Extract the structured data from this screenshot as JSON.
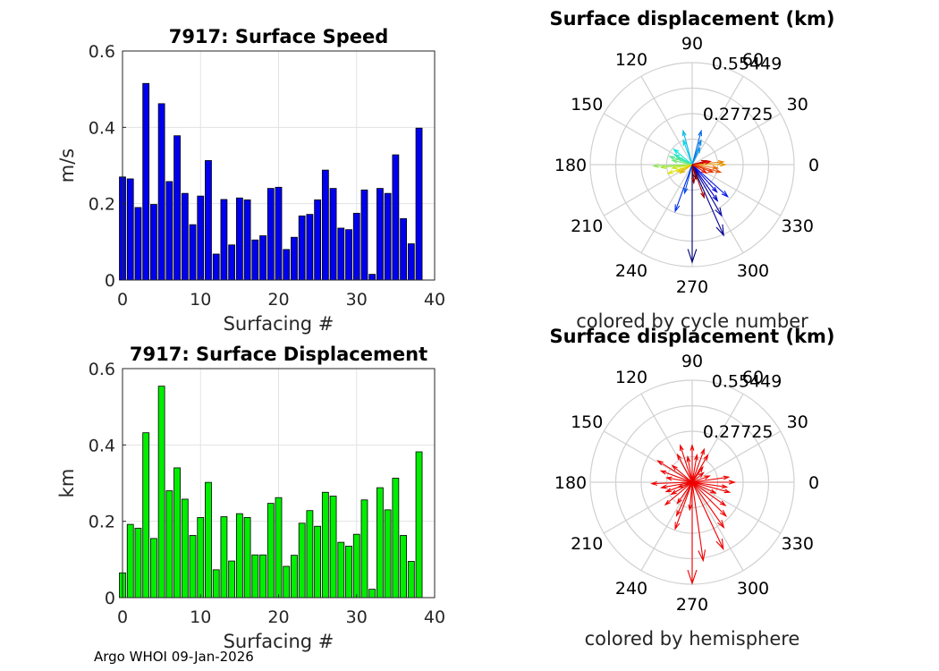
{
  "chart_data": [
    {
      "type": "bar",
      "title": "7917: Surface Speed",
      "xlabel": "Surfacing #",
      "ylabel": "m/s",
      "xlim": [
        0,
        40
      ],
      "ylim": [
        0,
        0.6
      ],
      "xticks": [
        "0",
        "10",
        "20",
        "30",
        "40"
      ],
      "yticks": [
        "0",
        "0.2",
        "0.4",
        "0.6"
      ],
      "grid": true,
      "color": "#0000ee",
      "x": [
        0,
        1,
        2,
        3,
        4,
        5,
        6,
        7,
        8,
        9,
        10,
        11,
        12,
        13,
        14,
        15,
        16,
        17,
        18,
        19,
        20,
        21,
        22,
        23,
        24,
        25,
        26,
        27,
        28,
        29,
        30,
        31,
        32,
        33,
        34,
        35,
        36,
        37,
        38
      ],
      "values": [
        0.27,
        0.265,
        0.19,
        0.515,
        0.198,
        0.462,
        0.258,
        0.378,
        0.227,
        0.145,
        0.22,
        0.313,
        0.068,
        0.211,
        0.092,
        0.215,
        0.21,
        0.105,
        0.116,
        0.24,
        0.243,
        0.08,
        0.112,
        0.168,
        0.172,
        0.21,
        0.288,
        0.24,
        0.136,
        0.132,
        0.175,
        0.236,
        0.015,
        0.24,
        0.227,
        0.328,
        0.161,
        0.095,
        0.398
      ]
    },
    {
      "type": "bar",
      "title": "7917: Surface Displacement",
      "xlabel": "Surfacing #",
      "ylabel": "km",
      "xlim": [
        0,
        40
      ],
      "ylim": [
        0,
        0.6
      ],
      "xticks": [
        "0",
        "10",
        "20",
        "30",
        "40"
      ],
      "yticks": [
        "0",
        "0.2",
        "0.4",
        "0.6"
      ],
      "grid": true,
      "color": "#00ee00",
      "x": [
        0,
        1,
        2,
        3,
        4,
        5,
        6,
        7,
        8,
        9,
        10,
        11,
        12,
        13,
        14,
        15,
        16,
        17,
        18,
        19,
        20,
        21,
        22,
        23,
        24,
        25,
        26,
        27,
        28,
        29,
        30,
        31,
        32,
        33,
        34,
        35,
        36,
        37,
        38
      ],
      "values": [
        0.065,
        0.192,
        0.182,
        0.432,
        0.155,
        0.554,
        0.28,
        0.34,
        0.258,
        0.163,
        0.21,
        0.302,
        0.073,
        0.212,
        0.096,
        0.22,
        0.21,
        0.112,
        0.112,
        0.247,
        0.262,
        0.082,
        0.111,
        0.195,
        0.228,
        0.187,
        0.276,
        0.266,
        0.145,
        0.135,
        0.166,
        0.256,
        0.022,
        0.288,
        0.23,
        0.313,
        0.163,
        0.095,
        0.382
      ]
    },
    {
      "type": "polar-arrows",
      "title": "Surface displacement (km)",
      "caption": "colored by cycle number",
      "rmax": 0.55449,
      "rtick_labels": [
        "0.27725",
        "0.55449"
      ],
      "angle_labels": [
        "0",
        "30",
        "60",
        "90",
        "120",
        "150",
        "180",
        "210",
        "240",
        "270",
        "300",
        "330"
      ],
      "coloring": "cycle",
      "arrows_deg_r": [
        [
          270,
          0.53
        ],
        [
          294,
          0.42
        ],
        [
          300,
          0.32
        ],
        [
          305,
          0.24
        ],
        [
          312,
          0.2
        ],
        [
          318,
          0.26
        ],
        [
          250,
          0.27
        ],
        [
          255,
          0.16
        ],
        [
          75,
          0.19
        ],
        [
          70,
          0.14
        ],
        [
          65,
          0.1
        ],
        [
          105,
          0.19
        ],
        [
          110,
          0.14
        ],
        [
          140,
          0.13
        ],
        [
          150,
          0.11
        ],
        [
          155,
          0.09
        ],
        [
          160,
          0.13
        ],
        [
          168,
          0.11
        ],
        [
          182,
          0.21
        ],
        [
          185,
          0.17
        ],
        [
          190,
          0.11
        ],
        [
          200,
          0.14
        ],
        [
          205,
          0.09
        ],
        [
          215,
          0.08
        ],
        [
          0,
          0.18
        ],
        [
          5,
          0.17
        ],
        [
          352,
          0.14
        ],
        [
          345,
          0.16
        ],
        [
          340,
          0.12
        ],
        [
          330,
          0.09
        ],
        [
          10,
          0.1
        ],
        [
          15,
          0.08
        ],
        [
          290,
          0.19
        ],
        [
          275,
          0.1
        ],
        [
          285,
          0.08
        ]
      ]
    },
    {
      "type": "polar-arrows",
      "title": "Surface displacement (km)",
      "caption": "colored by hemisphere",
      "rmax": 0.55449,
      "rtick_labels": [
        "0.27725",
        "0.55449"
      ],
      "angle_labels": [
        "0",
        "30",
        "60",
        "90",
        "120",
        "150",
        "180",
        "210",
        "240",
        "270",
        "300",
        "330"
      ],
      "coloring": "hemisphere",
      "color": "#ee0000",
      "arrows_deg_r": [
        [
          270,
          0.55
        ],
        [
          278,
          0.43
        ],
        [
          295,
          0.4
        ],
        [
          305,
          0.3
        ],
        [
          315,
          0.26
        ],
        [
          325,
          0.22
        ],
        [
          250,
          0.27
        ],
        [
          245,
          0.2
        ],
        [
          235,
          0.14
        ],
        [
          220,
          0.19
        ],
        [
          210,
          0.13
        ],
        [
          200,
          0.15
        ],
        [
          182,
          0.22
        ],
        [
          190,
          0.17
        ],
        [
          170,
          0.14
        ],
        [
          160,
          0.18
        ],
        [
          148,
          0.22
        ],
        [
          140,
          0.14
        ],
        [
          118,
          0.17
        ],
        [
          108,
          0.21
        ],
        [
          100,
          0.14
        ],
        [
          90,
          0.2
        ],
        [
          80,
          0.15
        ],
        [
          70,
          0.19
        ],
        [
          60,
          0.17
        ],
        [
          55,
          0.1
        ],
        [
          40,
          0.08
        ],
        [
          20,
          0.1
        ],
        [
          8,
          0.2
        ],
        [
          0,
          0.23
        ],
        [
          352,
          0.19
        ],
        [
          345,
          0.21
        ],
        [
          335,
          0.14
        ],
        [
          200,
          0.08
        ],
        [
          265,
          0.15
        ]
      ]
    }
  ],
  "footer": "Argo WHOI 09-Jan-2026"
}
